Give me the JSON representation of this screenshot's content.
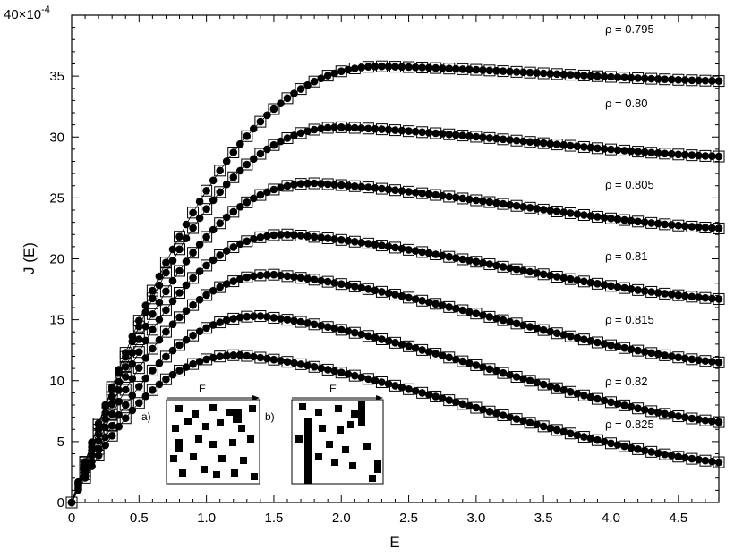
{
  "chart_data": {
    "type": "scatter",
    "xlabel": "E",
    "ylabel": "J (E)",
    "y_exponent_label": "40×10",
    "y_exponent_power": "-4",
    "xlim": [
      0,
      4.8
    ],
    "ylim": [
      0,
      40
    ],
    "x_ticks": [
      "0",
      "0.5",
      "1.0",
      "1.5",
      "2.0",
      "2.5",
      "3.0",
      "3.5",
      "4.0",
      "4.5"
    ],
    "x_tick_values": [
      0,
      0.5,
      1.0,
      1.5,
      2.0,
      2.5,
      3.0,
      3.5,
      4.0,
      4.5
    ],
    "y_ticks": [
      "0",
      "5",
      "10",
      "15",
      "20",
      "25",
      "30",
      "35"
    ],
    "y_tick_values": [
      0,
      5,
      10,
      15,
      20,
      25,
      30,
      35
    ],
    "grid": false,
    "series": [
      {
        "name": "ρ = 0.795",
        "rise_slope": 40,
        "peak_x": 2.3,
        "peak_y": 35.8,
        "end_y": 34.6
      },
      {
        "name": "ρ = 0.80",
        "rise_slope": 36,
        "peak_x": 2.0,
        "peak_y": 30.8,
        "end_y": 28.4
      },
      {
        "name": "ρ = 0.805",
        "rise_slope": 33,
        "peak_x": 1.8,
        "peak_y": 26.2,
        "end_y": 22.5
      },
      {
        "name": "ρ = 0.81",
        "rise_slope": 30,
        "peak_x": 1.6,
        "peak_y": 22.0,
        "end_y": 16.7
      },
      {
        "name": "ρ = 0.815",
        "rise_slope": 28,
        "peak_x": 1.5,
        "peak_y": 18.7,
        "end_y": 11.5
      },
      {
        "name": "ρ = 0.82",
        "rise_slope": 25,
        "peak_x": 1.4,
        "peak_y": 15.3,
        "end_y": 6.6
      },
      {
        "name": "ρ = 0.825",
        "rise_slope": 22,
        "peak_x": 1.25,
        "peak_y": 12.1,
        "end_y": 3.3
      }
    ],
    "insets": [
      {
        "label": "a)",
        "arrow_label": "E"
      },
      {
        "label": "b)",
        "arrow_label": "E"
      }
    ]
  }
}
